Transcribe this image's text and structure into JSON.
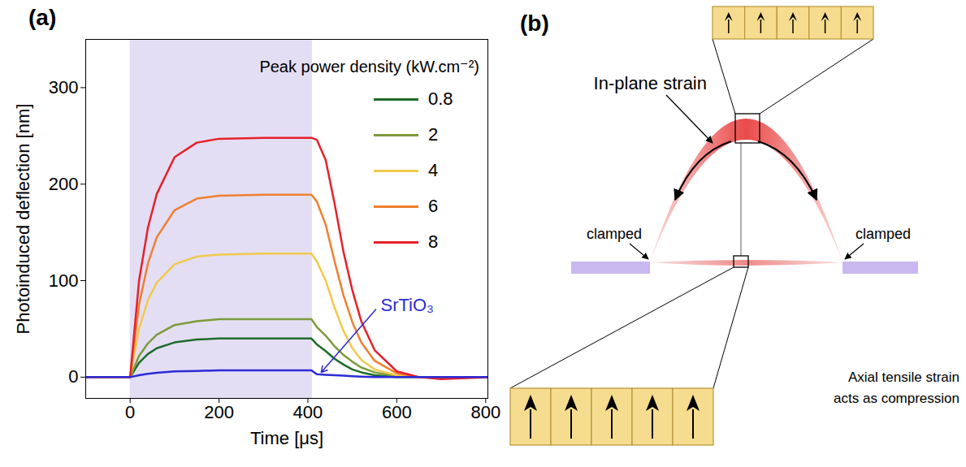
{
  "chart_data": {
    "type": "line",
    "panel_label": "(a)",
    "x_label": "Time [μs]",
    "y_label": "Photoinduced deflection [nm]",
    "legend_title": "Peak power density (kW.cm⁻²)",
    "legend": "top-right",
    "xlim": [
      -100,
      805
    ],
    "xticks": [
      0,
      200,
      400,
      600,
      800
    ],
    "ylim": [
      -22,
      350
    ],
    "yticks": [
      0,
      100,
      200,
      300
    ],
    "highlight": [
      0,
      410
    ],
    "highlight_color": "#e4def4",
    "x": [
      -100,
      0,
      20,
      40,
      60,
      100,
      150,
      200,
      300,
      408,
      420,
      440,
      460,
      480,
      500,
      520,
      550,
      600,
      650,
      700,
      805
    ],
    "series": [
      {
        "name": "0.8",
        "color": "#1f6b2c",
        "values": [
          0,
          0,
          15,
          24,
          30,
          36,
          39,
          40,
          40,
          40,
          34,
          27,
          19,
          13,
          8,
          5,
          2,
          0,
          0,
          0,
          0
        ]
      },
      {
        "name": "2",
        "color": "#7d9b3c",
        "values": [
          0,
          0,
          22,
          35,
          44,
          54,
          58,
          60,
          60,
          60,
          52,
          43,
          32,
          23,
          16,
          10,
          5,
          1,
          0,
          0,
          0
        ]
      },
      {
        "name": "4",
        "color": "#f2c94c",
        "values": [
          0,
          0,
          50,
          80,
          98,
          117,
          125,
          127,
          128,
          128,
          120,
          100,
          72,
          48,
          30,
          18,
          8,
          2,
          0,
          -1,
          0
        ]
      },
      {
        "name": "6",
        "color": "#f07f30",
        "values": [
          0,
          0,
          75,
          118,
          145,
          173,
          185,
          188,
          189,
          189,
          182,
          158,
          120,
          85,
          57,
          36,
          17,
          4,
          0,
          -1,
          0
        ]
      },
      {
        "name": "8",
        "color": "#e8202a",
        "values": [
          0,
          0,
          100,
          155,
          190,
          228,
          243,
          247,
          248,
          248,
          246,
          225,
          180,
          130,
          90,
          58,
          28,
          6,
          0,
          -2,
          0
        ]
      },
      {
        "name": "SrTiO₃",
        "color": "#2b2bd6",
        "values": [
          0,
          0,
          2,
          3.5,
          4.5,
          6,
          6.5,
          7,
          7,
          7,
          3,
          2.5,
          2,
          1.5,
          1,
          0.5,
          0,
          0,
          0,
          0,
          0
        ]
      }
    ],
    "annotations": [
      {
        "text": "SrTiO₃",
        "x": 560,
        "y": 74,
        "arrow_to": [
          430,
          5
        ],
        "color": "#2b2bd6"
      }
    ]
  },
  "diagram": {
    "panel_label": "(b)",
    "title": "In-plane strain",
    "left_label": "clamped",
    "right_label": "clamped",
    "bottom_note": [
      "Axial tensile strain",
      "acts as compression"
    ],
    "top_cells": 5,
    "bottom_cells": 5
  }
}
